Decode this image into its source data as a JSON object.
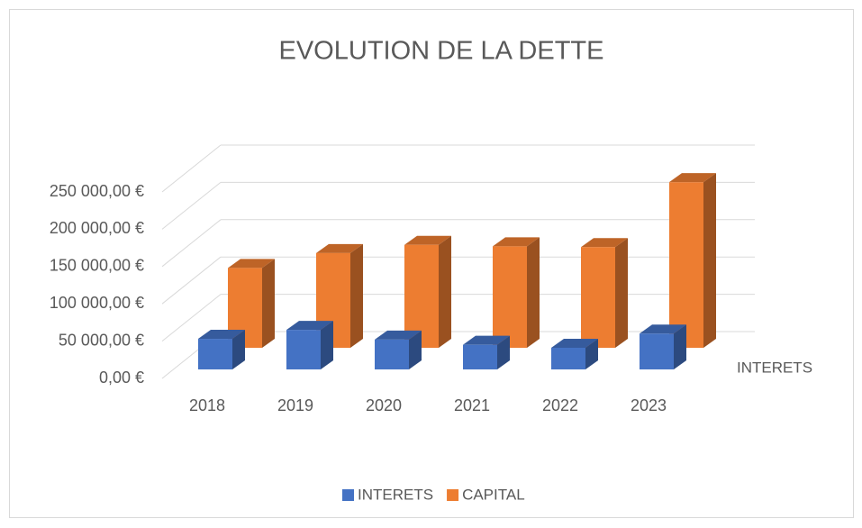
{
  "chart_data": {
    "type": "bar3d",
    "title": "EVOLUTION DE LA DETTE",
    "categories": [
      "2018",
      "2019",
      "2020",
      "2021",
      "2022",
      "2023"
    ],
    "series": [
      {
        "name": "INTERETS",
        "color": "#4472c4",
        "values": [
          41000,
          53000,
          40000,
          33000,
          29000,
          48000
        ]
      },
      {
        "name": "CAPITAL",
        "color": "#ed7d31",
        "values": [
          107000,
          127000,
          138000,
          136000,
          135000,
          222000
        ]
      }
    ],
    "ylim": [
      0,
      250000
    ],
    "yticks": [
      {
        "value": 0,
        "label": "0,00 €"
      },
      {
        "value": 50000,
        "label": "50 000,00 €"
      },
      {
        "value": 100000,
        "label": "100 000,00 €"
      },
      {
        "value": 150000,
        "label": "150 000,00 €"
      },
      {
        "value": 200000,
        "label": "200 000,00 €"
      },
      {
        "value": 250000,
        "label": "250 000,00 €"
      }
    ],
    "grid": true,
    "legend": "bottom"
  }
}
